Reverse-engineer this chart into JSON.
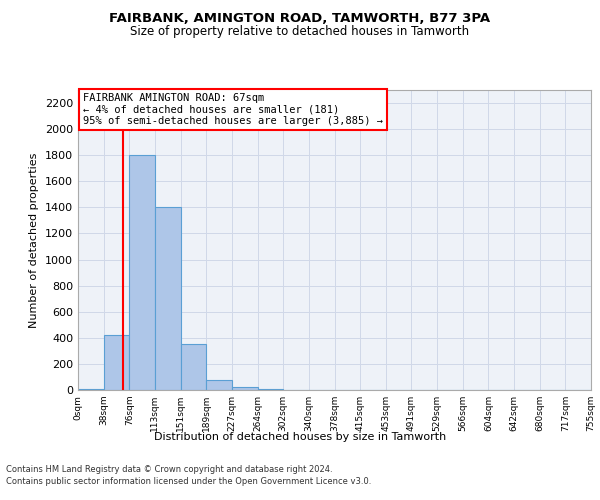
{
  "title": "FAIRBANK, AMINGTON ROAD, TAMWORTH, B77 3PA",
  "subtitle": "Size of property relative to detached houses in Tamworth",
  "xlabel": "Distribution of detached houses by size in Tamworth",
  "ylabel": "Number of detached properties",
  "footer_line1": "Contains HM Land Registry data © Crown copyright and database right 2024.",
  "footer_line2": "Contains public sector information licensed under the Open Government Licence v3.0.",
  "bin_labels": [
    "0sqm",
    "38sqm",
    "76sqm",
    "113sqm",
    "151sqm",
    "189sqm",
    "227sqm",
    "264sqm",
    "302sqm",
    "340sqm",
    "378sqm",
    "415sqm",
    "453sqm",
    "491sqm",
    "529sqm",
    "566sqm",
    "604sqm",
    "642sqm",
    "680sqm",
    "717sqm",
    "755sqm"
  ],
  "bar_values": [
    10,
    420,
    1800,
    1400,
    350,
    80,
    25,
    5,
    0,
    0,
    0,
    0,
    0,
    0,
    0,
    0,
    0,
    0,
    0,
    0
  ],
  "bar_color": "#aec6e8",
  "bar_edge_color": "#5a9fd4",
  "ylim": [
    0,
    2300
  ],
  "yticks": [
    0,
    200,
    400,
    600,
    800,
    1000,
    1200,
    1400,
    1600,
    1800,
    2000,
    2200
  ],
  "property_line_bin_index": 1.76,
  "annotation_title": "FAIRBANK AMINGTON ROAD: 67sqm",
  "annotation_line1": "← 4% of detached houses are smaller (181)",
  "annotation_line2": "95% of semi-detached houses are larger (3,885) →",
  "grid_color": "#d0d8e8",
  "background_color": "#eef2f8"
}
